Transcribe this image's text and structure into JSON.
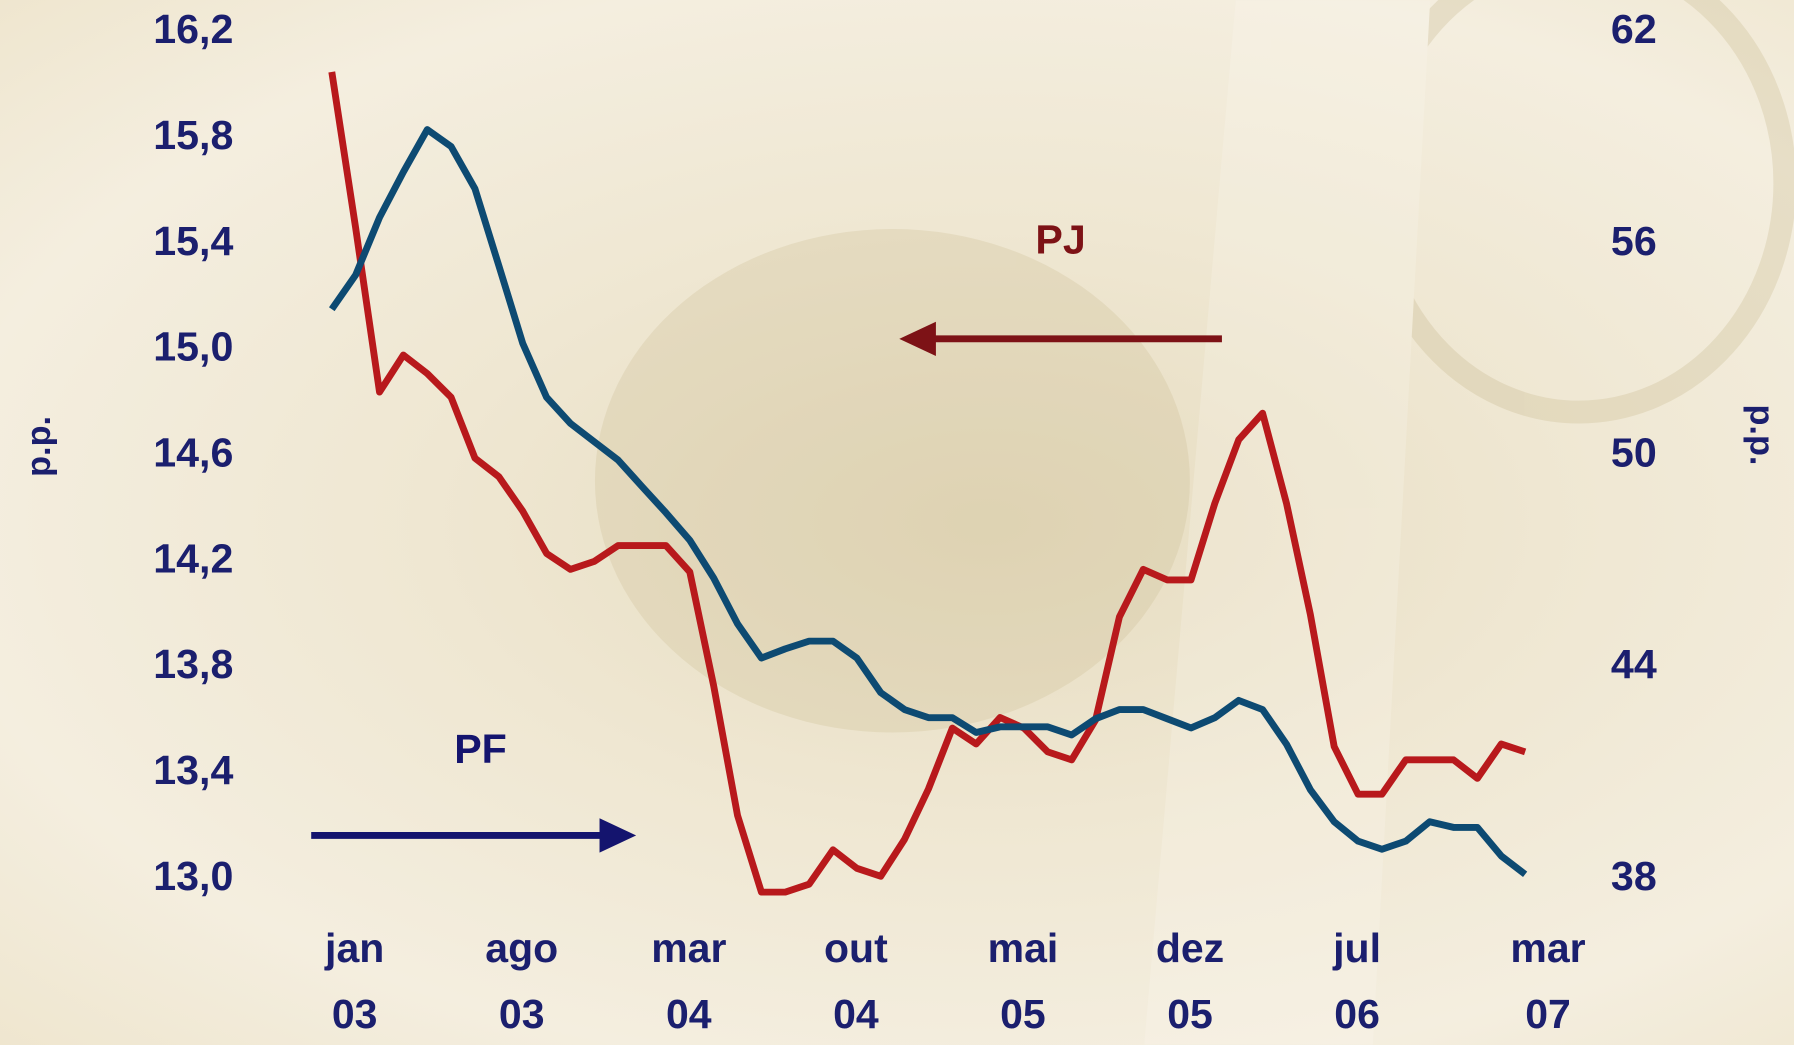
{
  "chart_data": {
    "type": "line",
    "x": [
      "jan\n03",
      null,
      null,
      null,
      null,
      null,
      null,
      "ago\n03",
      null,
      null,
      null,
      null,
      null,
      null,
      "mar\n04",
      null,
      null,
      null,
      null,
      null,
      null,
      "out\n04",
      null,
      null,
      null,
      null,
      null,
      null,
      "mai\n05",
      null,
      null,
      null,
      null,
      null,
      null,
      "dez\n05",
      null,
      null,
      null,
      null,
      null,
      null,
      "jul\n06",
      null,
      null,
      null,
      null,
      null,
      null,
      null,
      "mar\n07"
    ],
    "series": [
      {
        "name": "PJ",
        "color": "#b8191c",
        "arrow_color": "#7d1216",
        "axis": "y",
        "values": [
          16.05,
          15.46,
          14.84,
          14.98,
          14.91,
          14.82,
          14.59,
          14.52,
          14.39,
          14.23,
          14.17,
          14.2,
          14.26,
          14.26,
          14.26,
          14.16,
          13.73,
          13.24,
          12.95,
          12.95,
          12.98,
          13.11,
          13.04,
          13.01,
          13.15,
          13.34,
          13.57,
          13.51,
          13.61,
          13.57,
          13.48,
          13.45,
          13.6,
          13.99,
          14.17,
          14.13,
          14.13,
          14.42,
          14.66,
          14.76,
          14.42,
          14.0,
          13.5,
          13.32,
          13.32,
          13.45,
          13.45,
          13.45,
          13.38,
          13.51,
          13.48
        ]
      },
      {
        "name": "PF",
        "color": "#0d4a72",
        "arrow_color": "#14146e",
        "axis": "y2",
        "values": [
          54.15,
          55.12,
          56.75,
          58.04,
          59.24,
          58.76,
          57.56,
          55.38,
          53.18,
          51.65,
          50.91,
          50.39,
          49.87,
          49.12,
          48.38,
          47.6,
          46.53,
          45.23,
          44.26,
          44.52,
          44.74,
          44.74,
          44.26,
          43.28,
          42.8,
          42.57,
          42.57,
          42.15,
          42.31,
          42.31,
          42.31,
          42.08,
          42.54,
          42.8,
          42.8,
          42.54,
          42.28,
          42.57,
          43.06,
          42.8,
          41.82,
          40.53,
          39.62,
          39.07,
          38.84,
          39.07,
          39.62,
          39.46,
          39.46,
          38.65,
          38.13
        ]
      }
    ],
    "ylabel": "p.p.",
    "y2label": "p.p.",
    "ylim": [
      13.0,
      16.2
    ],
    "yticks": [
      {
        "value": 13.0,
        "label": "13,0"
      },
      {
        "value": 13.4,
        "label": "13,4"
      },
      {
        "value": 13.8,
        "label": "13,8"
      },
      {
        "value": 14.2,
        "label": "14,2"
      },
      {
        "value": 14.6,
        "label": "14,6"
      },
      {
        "value": 15.0,
        "label": "15,0"
      },
      {
        "value": 15.4,
        "label": "15,4"
      },
      {
        "value": 15.8,
        "label": "15,8"
      },
      {
        "value": 16.2,
        "label": "16,2"
      }
    ],
    "y2lim": [
      38,
      62
    ],
    "y2ticks": [
      38,
      44,
      50,
      56,
      62
    ],
    "grid": false
  }
}
